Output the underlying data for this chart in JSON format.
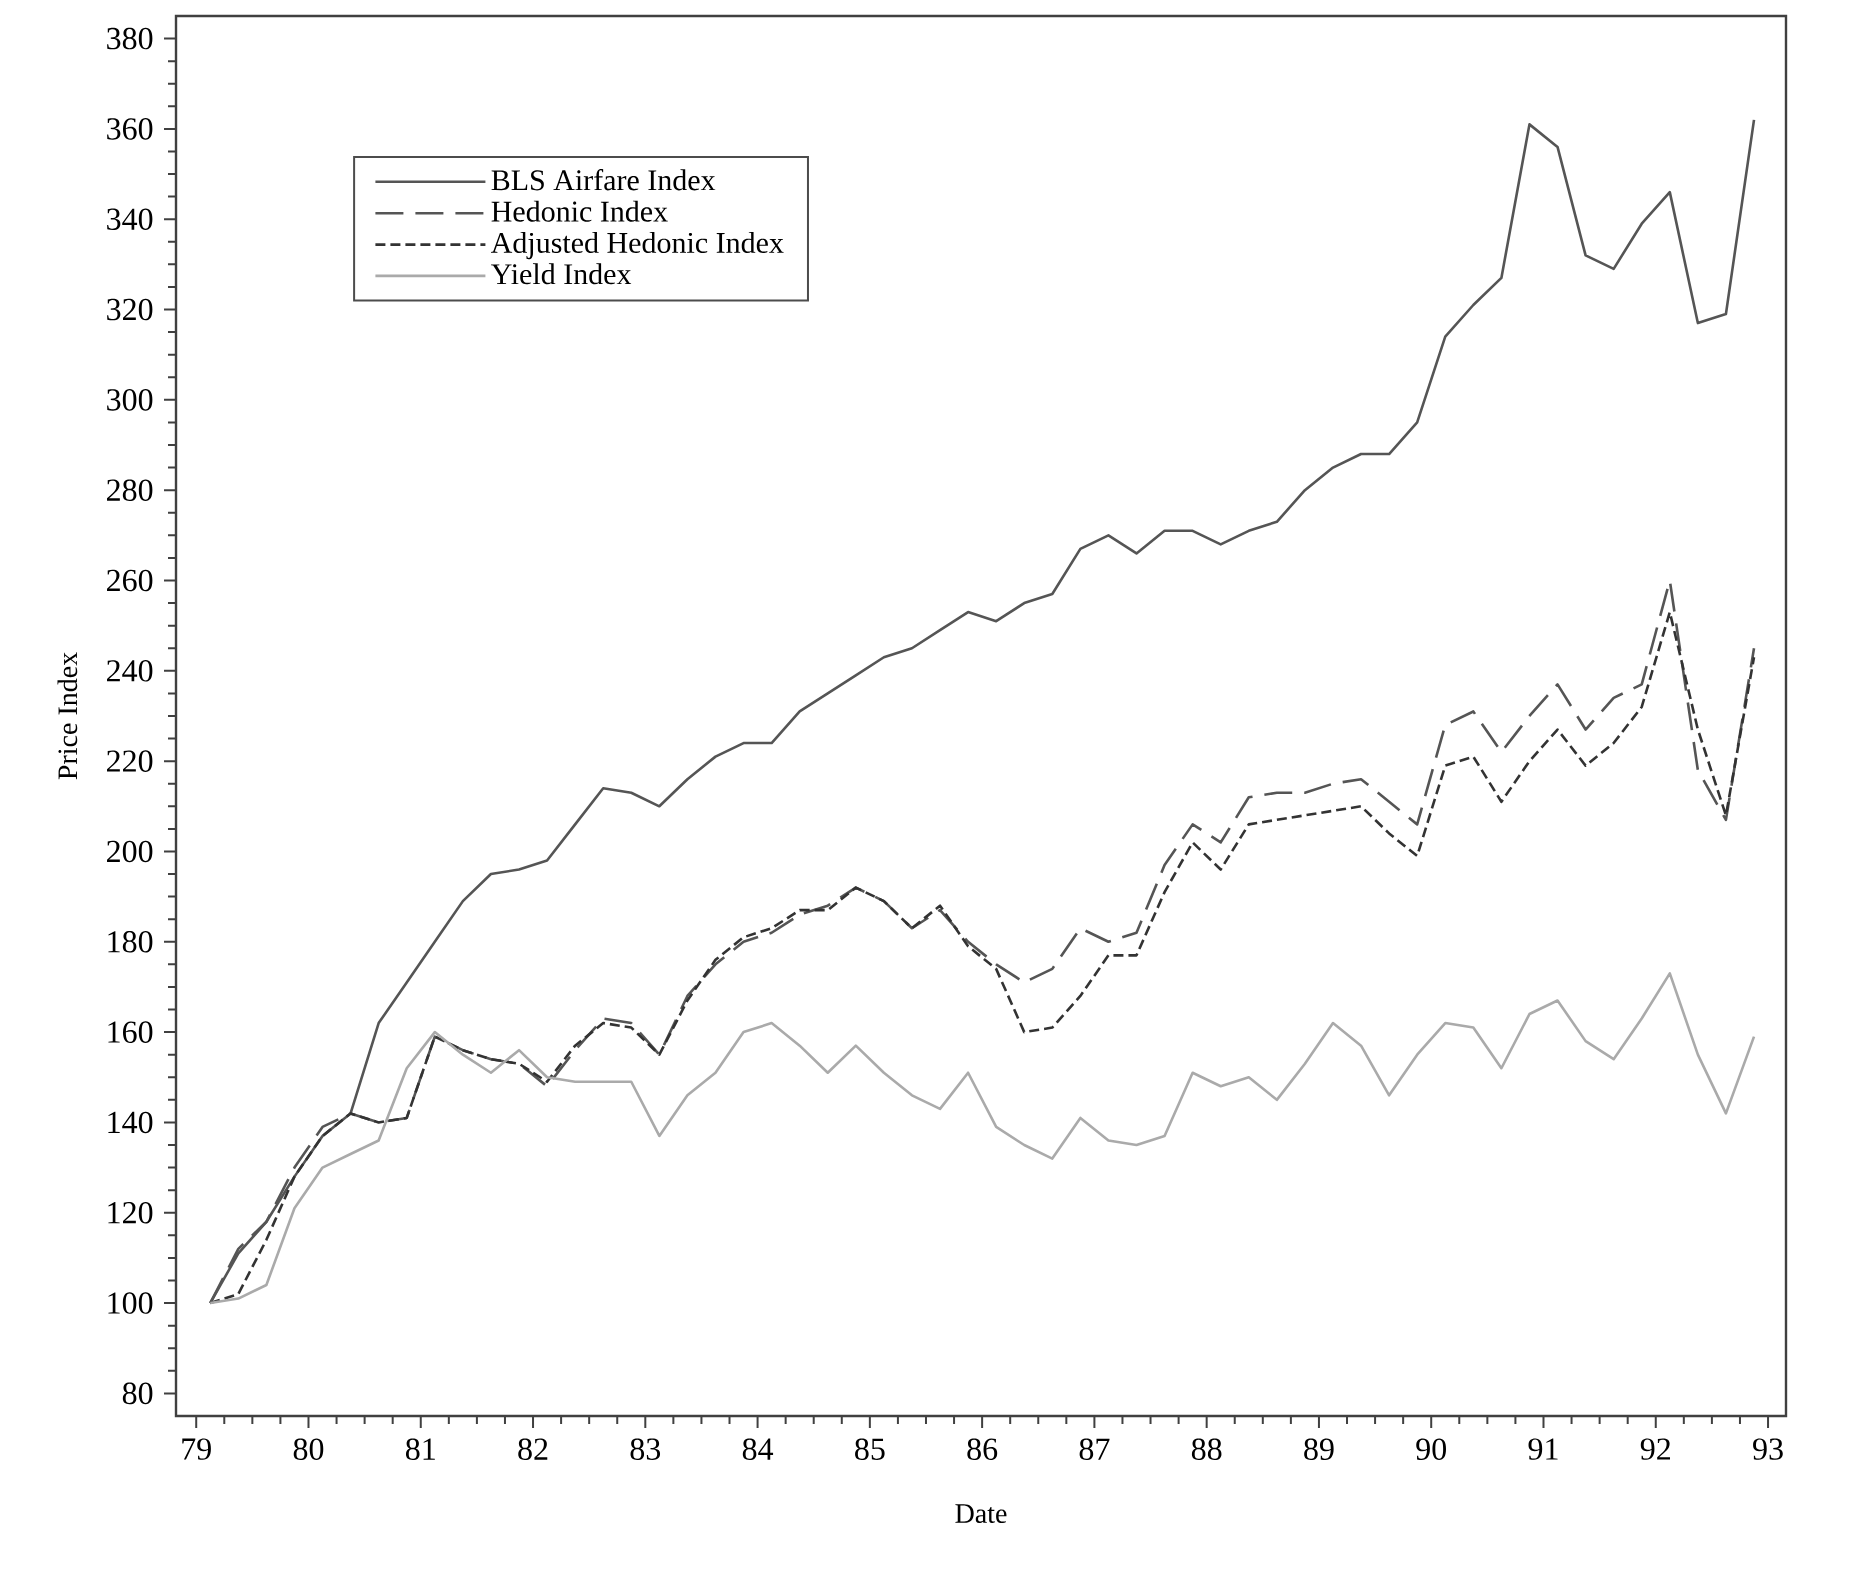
{
  "chart_data": {
    "type": "line",
    "xlabel": "Date",
    "ylabel": "Price Index",
    "x": [
      79.125,
      79.375,
      79.625,
      79.875,
      80.125,
      80.375,
      80.625,
      80.875,
      81.125,
      81.375,
      81.625,
      81.875,
      82.125,
      82.375,
      82.625,
      82.875,
      83.125,
      83.375,
      83.625,
      83.875,
      84.125,
      84.375,
      84.625,
      84.875,
      85.125,
      85.375,
      85.625,
      85.875,
      86.125,
      86.375,
      86.625,
      86.875,
      87.125,
      87.375,
      87.625,
      87.875,
      88.125,
      88.375,
      88.625,
      88.875,
      89.125,
      89.375,
      89.625,
      89.875,
      90.125,
      90.375,
      90.625,
      90.875,
      91.125,
      91.375,
      91.625,
      91.875,
      92.125,
      92.375,
      92.625,
      92.875
    ],
    "series": [
      {
        "name": "BLS Airfare Index",
        "color": "#555555",
        "line_style": "solid",
        "values": [
          100,
          111,
          118,
          128,
          137,
          142,
          162,
          171,
          180,
          189,
          195,
          196,
          198,
          206,
          214,
          213,
          210,
          216,
          221,
          224,
          224,
          231,
          235,
          239,
          243,
          245,
          249,
          253,
          251,
          255,
          257,
          267,
          270,
          266,
          271,
          271,
          268,
          271,
          273,
          280,
          285,
          288,
          288,
          295,
          314,
          321,
          327,
          361,
          356,
          332,
          329,
          339,
          346,
          317,
          319,
          362
        ]
      },
      {
        "name": "Hedonic Index",
        "color": "#555555",
        "line_style": "dashed",
        "values": [
          100,
          112,
          118,
          130,
          139,
          142,
          140,
          141,
          159,
          156,
          154,
          153,
          148,
          156,
          163,
          162,
          155,
          168,
          175,
          180,
          182,
          186,
          188,
          192,
          189,
          183,
          187,
          180,
          175,
          171,
          174,
          183,
          180,
          182,
          197,
          206,
          202,
          212,
          213,
          213,
          215,
          216,
          211,
          206,
          228,
          231,
          222,
          230,
          237,
          227,
          234,
          237,
          260,
          218,
          207,
          245
        ]
      },
      {
        "name": "Adjusted Hedonic Index",
        "color": "#333333",
        "line_style": "dotted",
        "values": [
          100,
          102,
          114,
          128,
          137,
          142,
          140,
          141,
          159,
          156,
          154,
          153,
          149,
          157,
          162,
          161,
          155,
          167,
          176,
          181,
          183,
          187,
          187,
          192,
          189,
          183,
          188,
          179,
          174,
          160,
          161,
          168,
          177,
          177,
          191,
          202,
          196,
          206,
          207,
          208,
          209,
          210,
          204,
          199,
          219,
          221,
          211,
          220,
          227,
          219,
          224,
          232,
          253,
          227,
          208,
          243
        ]
      },
      {
        "name": "Yield Index",
        "color": "#aaaaaa",
        "line_style": "solid",
        "values": [
          100,
          101,
          104,
          121,
          130,
          133,
          136,
          152,
          160,
          155,
          151,
          156,
          150,
          149,
          149,
          149,
          137,
          146,
          151,
          160,
          162,
          157,
          151,
          157,
          151,
          146,
          143,
          151,
          139,
          135,
          132,
          141,
          136,
          135,
          137,
          151,
          148,
          150,
          145,
          153,
          162,
          157,
          146,
          155,
          162,
          161,
          152,
          164,
          167,
          158,
          154,
          163,
          173,
          155,
          142,
          159
        ]
      }
    ],
    "xlim": [
      78.82,
      93.16
    ],
    "ylim": [
      75,
      385
    ],
    "xticks": [
      79,
      80,
      81,
      82,
      83,
      84,
      85,
      86,
      87,
      88,
      89,
      90,
      91,
      92,
      93
    ],
    "yticks": [
      80,
      100,
      120,
      140,
      160,
      180,
      200,
      220,
      240,
      260,
      280,
      300,
      320,
      340,
      360,
      380
    ],
    "legend": "top left"
  }
}
